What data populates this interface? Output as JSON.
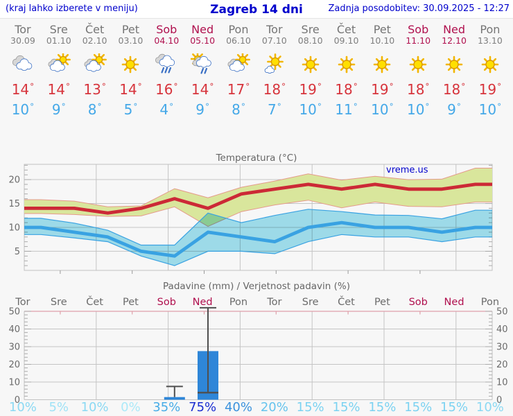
{
  "header": {
    "hint": "(kraj lahko izberete v meniju)",
    "title": "Zagreb 14 dni",
    "last_update": "Zadnja posodobitev: 30.09.2025 - 12:27"
  },
  "colors": {
    "link_blue": "#0000cc",
    "weekday_gray": "#757575",
    "weekend_red": "#b0104e",
    "temp_high_red": "#d7343c",
    "temp_low_blue": "#44a8e8",
    "bar_blue": "#2e86d8",
    "whisker_gray": "#4f4f4f",
    "grid_gray": "#c4c4c4",
    "axis_text": "#6a6a6a",
    "precip_top_pink": "#dfa0aa"
  },
  "days": [
    {
      "name": "Tor",
      "date": "30.09",
      "weekend": false,
      "icon": "cloudy",
      "high": "14",
      "low": "10"
    },
    {
      "name": "Sre",
      "date": "01.10",
      "weekend": false,
      "icon": "sun-cloud",
      "high": "14",
      "low": "9"
    },
    {
      "name": "Čet",
      "date": "02.10",
      "weekend": false,
      "icon": "sun-cloud",
      "high": "13",
      "low": "8"
    },
    {
      "name": "Pet",
      "date": "03.10",
      "weekend": false,
      "icon": "sunny",
      "high": "14",
      "low": "5"
    },
    {
      "name": "Sob",
      "date": "04.10",
      "weekend": true,
      "icon": "rain",
      "high": "16",
      "low": "4"
    },
    {
      "name": "Ned",
      "date": "05.10",
      "weekend": true,
      "icon": "sun-rain",
      "high": "14",
      "low": "9"
    },
    {
      "name": "Pon",
      "date": "06.10",
      "weekend": false,
      "icon": "sun-cloud",
      "high": "17",
      "low": "8"
    },
    {
      "name": "Tor",
      "date": "07.10",
      "weekend": false,
      "icon": "sun-small-cloud",
      "high": "18",
      "low": "7"
    },
    {
      "name": "Sre",
      "date": "08.10",
      "weekend": false,
      "icon": "sunny",
      "high": "19",
      "low": "10"
    },
    {
      "name": "Čet",
      "date": "09.10",
      "weekend": false,
      "icon": "sunny",
      "high": "18",
      "low": "11"
    },
    {
      "name": "Pet",
      "date": "10.10",
      "weekend": false,
      "icon": "sunny",
      "high": "19",
      "low": "10"
    },
    {
      "name": "Sob",
      "date": "11.10",
      "weekend": true,
      "icon": "sunny",
      "high": "18",
      "low": "10"
    },
    {
      "name": "Ned",
      "date": "12.10",
      "weekend": true,
      "icon": "sunny",
      "high": "18",
      "low": "9"
    },
    {
      "name": "Pon",
      "date": "13.10",
      "weekend": false,
      "icon": "sunny",
      "high": "19",
      "low": "10"
    }
  ],
  "chart_data": [
    {
      "type": "line",
      "title": "Temperatura (°C)",
      "watermark": "vreme.us",
      "x_categories": [
        "Tor",
        "Sre",
        "Čet",
        "Pet",
        "Sob",
        "Ned",
        "Pon",
        "Tor",
        "Sre",
        "Čet",
        "Pet",
        "Sob",
        "Ned",
        "Pon"
      ],
      "ylim": [
        1,
        23.2
      ],
      "yticks": [
        5,
        10,
        15,
        20
      ],
      "grid": true,
      "band_colors": {
        "max": "#d9e69c",
        "max_border": "#e59a8a",
        "min": "#a2e1f0",
        "min_border": "#39a2e2"
      },
      "series": [
        {
          "name": "max_temp",
          "color": "#cc2936",
          "values": [
            14,
            14,
            13,
            14,
            16,
            14,
            17,
            18,
            19,
            18,
            19,
            18,
            18,
            19
          ]
        },
        {
          "name": "max_range_upper",
          "values": [
            15.8,
            15.5,
            14.3,
            14.5,
            18.1,
            16.2,
            18.4,
            19.7,
            21.2,
            19.9,
            20.7,
            20.0,
            20.1,
            22.4
          ]
        },
        {
          "name": "max_range_lower",
          "values": [
            12.9,
            12.7,
            12.3,
            12.4,
            14.3,
            10.2,
            13.3,
            14.7,
            15.7,
            14.1,
            15.3,
            14.4,
            14.3,
            15.3
          ]
        },
        {
          "name": "min_temp",
          "color": "#39a2e2",
          "values": [
            10,
            9,
            8,
            5,
            4,
            9,
            8,
            7,
            10,
            11,
            10,
            10,
            9,
            10
          ]
        },
        {
          "name": "min_range_upper",
          "values": [
            11.9,
            10.9,
            9.4,
            6.3,
            6.3,
            13.0,
            11.0,
            12.5,
            13.8,
            13.3,
            12.6,
            12.5,
            11.8,
            13.6
          ]
        },
        {
          "name": "min_range_lower",
          "values": [
            8.5,
            7.8,
            7.0,
            4.0,
            2.0,
            5.0,
            5.0,
            4.5,
            7.0,
            8.5,
            8.0,
            8.0,
            7.0,
            8.0
          ]
        }
      ]
    },
    {
      "type": "bar",
      "title": "Padavine (mm) / Verjetnost padavin (%)",
      "x_categories": [
        "Tor",
        "Sre",
        "Čet",
        "Pet",
        "Sob",
        "Ned",
        "Pon",
        "Tor",
        "Sre",
        "Čet",
        "Pet",
        "Sob",
        "Ned",
        "Pon"
      ],
      "weekend_indices": [
        4,
        5,
        11,
        12
      ],
      "ylim": [
        0,
        50
      ],
      "yticks": [
        0,
        10,
        20,
        30,
        40,
        50
      ],
      "bars_mm": [
        0,
        0,
        0,
        0,
        1.5,
        27.5,
        0,
        0,
        0,
        0,
        0,
        0,
        0,
        0
      ],
      "bars": [
        {
          "index": 4,
          "mm": 1.5,
          "whisker_high": 7.5
        },
        {
          "index": 5,
          "mm": 27.5,
          "whisker_low": 4,
          "whisker_high": 52
        }
      ],
      "probabilities": [
        {
          "label": "10%",
          "color": "#8bd9f3"
        },
        {
          "label": "5%",
          "color": "#9fe2f6"
        },
        {
          "label": "10%",
          "color": "#8bd9f3"
        },
        {
          "label": "0%",
          "color": "#abe9f8"
        },
        {
          "label": "35%",
          "color": "#47ace7"
        },
        {
          "label": "75%",
          "color": "#1b2ed1"
        },
        {
          "label": "40%",
          "color": "#3b92dd"
        },
        {
          "label": "20%",
          "color": "#65c3ed"
        },
        {
          "label": "15%",
          "color": "#7bd2f1"
        },
        {
          "label": "15%",
          "color": "#7bd2f1"
        },
        {
          "label": "15%",
          "color": "#7bd2f1"
        },
        {
          "label": "15%",
          "color": "#7bd2f1"
        },
        {
          "label": "15%",
          "color": "#7bd2f1"
        },
        {
          "label": "10%",
          "color": "#8bd9f3"
        }
      ]
    }
  ]
}
